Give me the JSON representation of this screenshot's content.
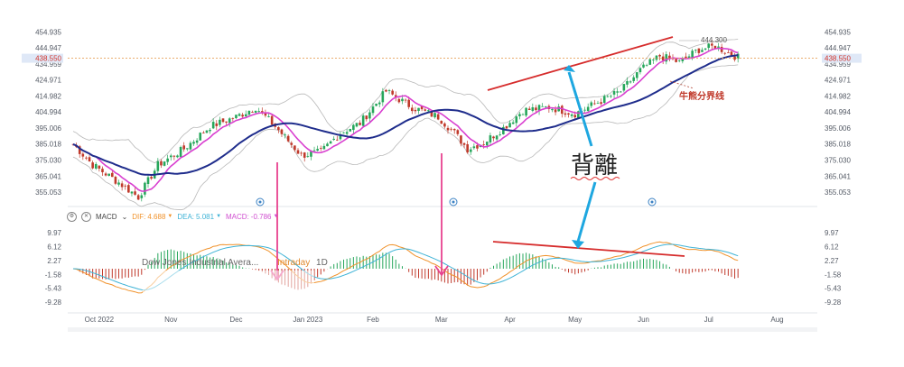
{
  "chart_data": {
    "type": "candlestick",
    "price_axis": {
      "ticks": [
        "454.935",
        "444.947",
        "434.959",
        "424.971",
        "414.982",
        "404.994",
        "395.006",
        "385.018",
        "375.030",
        "365.041",
        "355.053"
      ],
      "tick_values": [
        454.935,
        444.947,
        434.959,
        424.971,
        414.982,
        404.994,
        395.006,
        385.018,
        375.03,
        365.041,
        355.053
      ],
      "current_price": "438.550",
      "current_value": 438.55,
      "ylim": [
        350,
        458
      ]
    },
    "macd_axis": {
      "ticks": [
        "9.97",
        "6.12",
        "2.27",
        "-1.58",
        "-5.43",
        "-9.28"
      ],
      "tick_values": [
        9.97,
        6.12,
        2.27,
        -1.58,
        -5.43,
        -9.28
      ],
      "ylim": [
        -11,
        12
      ]
    },
    "x_axis": {
      "labels": [
        "Oct 2022",
        "Nov",
        "Dec",
        "Jan 2023",
        "Feb",
        "Mar",
        "Apr",
        "May",
        "Jun",
        "Jul",
        "Aug"
      ],
      "label_index": [
        8,
        30,
        50,
        72,
        92,
        113,
        134,
        154,
        175,
        195,
        216
      ],
      "bars": 205
    },
    "macd_legend": {
      "name": "MACD",
      "dif_label": "DIF:",
      "dif_value": "4.688",
      "dea_label": "DEA:",
      "dea_value": "5.081",
      "macd_label": "MACD:",
      "macd_value": "-0.786",
      "dif_color": "#f0922b",
      "dea_color": "#3fb3d6",
      "macd_color": "#d04fd0"
    },
    "overlay": {
      "name": "Dow Jones Industrial Avera...",
      "interval_word": "Intraday",
      "interval": "1D"
    },
    "annotations": {
      "divergence": "背離",
      "bull_bear_line": "牛熊分界线",
      "high_marker": "444.300"
    },
    "colors": {
      "up": "#26a65b",
      "down": "#c0392b",
      "ma_fast": "#d93fd0",
      "ma_slow": "#1f2d8c",
      "bands": "#b8b8b8",
      "trend": "#d62c2c",
      "arrow": "#1ea7e0",
      "pink_arrow": "#e8418f"
    }
  }
}
